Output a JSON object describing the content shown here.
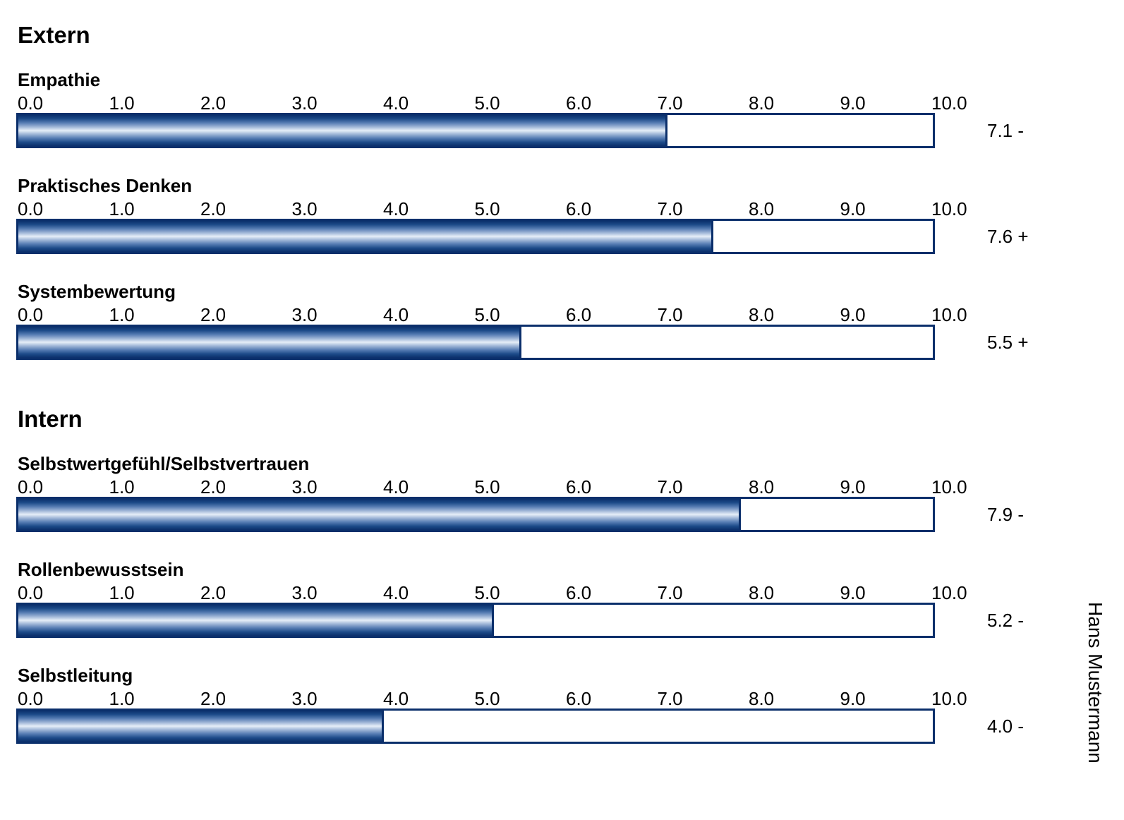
{
  "person_name": "Hans Mustermann",
  "colors": {
    "bar": "#0b2f6b"
  },
  "chart_data": [
    {
      "type": "bar",
      "orientation": "horizontal",
      "group": "Extern",
      "xlim": [
        0,
        10
      ],
      "tick_labels": [
        "0.0",
        "1.0",
        "2.0",
        "3.0",
        "4.0",
        "5.0",
        "6.0",
        "7.0",
        "8.0",
        "9.0",
        "10.0"
      ],
      "items": [
        {
          "label": "Empathie",
          "value": 7.1,
          "score_text": "7.1 -"
        },
        {
          "label": "Praktisches Denken",
          "value": 7.6,
          "score_text": "7.6 +"
        },
        {
          "label": "Systembewertung",
          "value": 5.5,
          "score_text": "5.5 +"
        }
      ]
    },
    {
      "type": "bar",
      "orientation": "horizontal",
      "group": "Intern",
      "xlim": [
        0,
        10
      ],
      "tick_labels": [
        "0.0",
        "1.0",
        "2.0",
        "3.0",
        "4.0",
        "5.0",
        "6.0",
        "7.0",
        "8.0",
        "9.0",
        "10.0"
      ],
      "items": [
        {
          "label": "Selbstwertgefühl/Selbstvertrauen",
          "value": 7.9,
          "score_text": "7.9 -"
        },
        {
          "label": "Rollenbewusstsein",
          "value": 5.2,
          "score_text": "5.2 -"
        },
        {
          "label": "Selbstleitung",
          "value": 4.0,
          "score_text": "4.0 -"
        }
      ]
    }
  ]
}
